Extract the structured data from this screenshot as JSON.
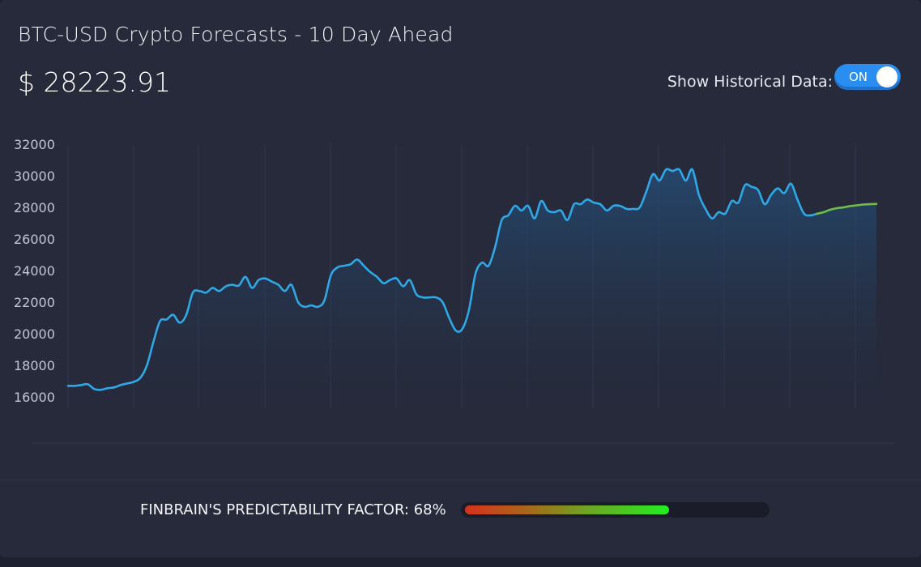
{
  "header": {
    "title": "BTC-USD Crypto Forecasts - 10 Day Ahead",
    "price": "$ 28223.91"
  },
  "toggle": {
    "label": "Show Historical Data:",
    "state": "ON"
  },
  "predictability": {
    "label": "FINBRAIN'S PREDICTABILITY FACTOR: 68%",
    "value": 0.68
  },
  "colors": {
    "historical_line": "#2ea8e6",
    "forecast_line": "#6fbf44",
    "toggle_on": "#2a8ef0"
  },
  "chart_data": {
    "type": "line",
    "ylim": [
      16000,
      32000
    ],
    "yticks": [
      "32000",
      "30000",
      "28000",
      "26000",
      "24000",
      "22000",
      "20000",
      "18000",
      "16000"
    ],
    "grid": "vertical",
    "series": [
      {
        "values": [
          16700,
          16700,
          16750,
          16800,
          16500,
          16450,
          16550,
          16600,
          16750,
          16850,
          16950,
          17200,
          18000,
          19500,
          20800,
          20900,
          21200,
          20700,
          21200,
          22600,
          22700,
          22600,
          22900,
          22700,
          23000,
          23100,
          23050,
          23600,
          22900,
          23400,
          23500,
          23300,
          23100,
          22700,
          23100,
          22000,
          21700,
          21800,
          21700,
          22100,
          23700,
          24200,
          24300,
          24400,
          24700,
          24300,
          23900,
          23600,
          23200,
          23400,
          23500,
          23000,
          23400,
          22500,
          22300,
          22300,
          22300,
          22000,
          21000,
          20200,
          20300,
          21500,
          23800,
          24500,
          24300,
          25500,
          27200,
          27500,
          28100,
          27800,
          28100,
          27300,
          28400,
          27800,
          27700,
          27800,
          27200,
          28200,
          28200,
          28500,
          28300,
          28200,
          27800,
          28100,
          28100,
          27900,
          27900,
          28000,
          29000,
          30100,
          29700,
          30400,
          30300,
          30400,
          29700,
          30400,
          28800,
          27900,
          27300,
          27700,
          27600,
          28400,
          28300,
          29400,
          29300,
          29100,
          28200,
          28800,
          29200,
          28900,
          29500,
          28500,
          27600,
          27500,
          27600
        ],
        "forecast": [
          27600,
          27700,
          27850,
          27950,
          28000,
          28080,
          28130,
          28180,
          28200,
          28223
        ]
      }
    ]
  }
}
